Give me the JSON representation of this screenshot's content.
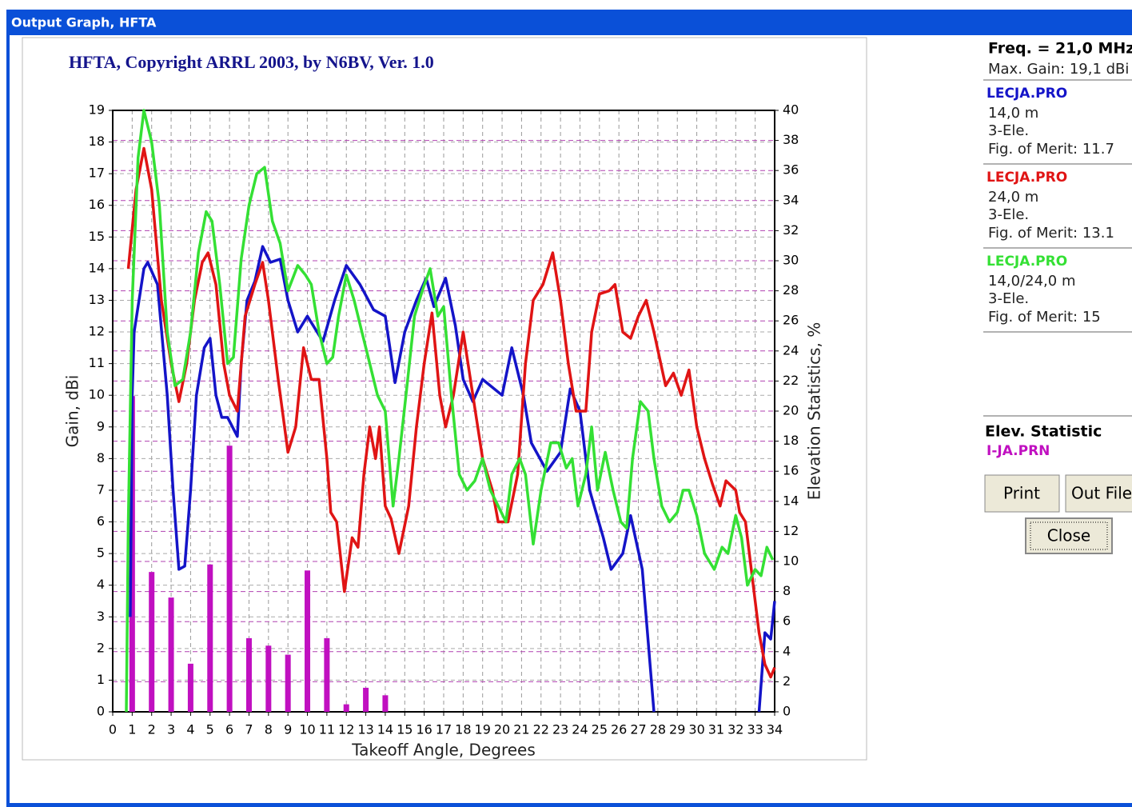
{
  "window": {
    "title": "Output Graph, HFTA"
  },
  "chart_data": {
    "type": "line",
    "title": "HFTA, Copyright ARRL 2003, by N6BV, Ver. 1.0",
    "x_label": "Takeoff Angle, Degrees",
    "y_label": "Gain, dBi",
    "y2_label": "Elevation Statistics, %",
    "xlim": [
      0,
      34
    ],
    "xticks": [
      0,
      1,
      2,
      3,
      4,
      5,
      6,
      7,
      8,
      9,
      10,
      11,
      12,
      13,
      14,
      15,
      16,
      17,
      18,
      19,
      20,
      21,
      22,
      23,
      24,
      25,
      26,
      27,
      28,
      29,
      30,
      31,
      32,
      33,
      34
    ],
    "ylim": [
      0,
      19
    ],
    "yticks": [
      0,
      1,
      2,
      3,
      4,
      5,
      6,
      7,
      8,
      9,
      10,
      11,
      12,
      13,
      14,
      15,
      16,
      17,
      18,
      19
    ],
    "y2lim": [
      0,
      40
    ],
    "y2ticks": [
      0,
      2,
      4,
      6,
      8,
      10,
      12,
      14,
      16,
      18,
      20,
      22,
      24,
      26,
      28,
      30,
      32,
      34,
      36,
      38,
      40
    ],
    "grid": true,
    "series": [
      {
        "name": "LECJA.PRO",
        "color": "#1414c8",
        "x": [
          0.9,
          1,
          1.1,
          1.6,
          1.8,
          2.3,
          2.8,
          3.1,
          3.4,
          3.7,
          4,
          4.3,
          4.7,
          5,
          5.3,
          5.6,
          5.9,
          6.4,
          6.6,
          6.9,
          7.3,
          7.7,
          8.1,
          8.6,
          9,
          9.5,
          10,
          10.8,
          11.4,
          12,
          12.7,
          13.4,
          14,
          14.5,
          15,
          15.6,
          16.1,
          16.5,
          17.1,
          17.6,
          18,
          18.5,
          19,
          20,
          20.5,
          21.1,
          21.5,
          22.3,
          23,
          23.5,
          24,
          24.5,
          25.2,
          25.6,
          26.2,
          26.6,
          27.2,
          27.8,
          30,
          33.2,
          33.5,
          33.8,
          34
        ],
        "values": [
          3,
          10,
          12,
          14,
          14.2,
          13.5,
          10,
          7,
          4.5,
          4.6,
          7,
          10,
          11.5,
          11.8,
          10,
          9.3,
          9.3,
          8.7,
          11,
          13,
          13.6,
          14.7,
          14.2,
          14.3,
          13,
          12,
          12.5,
          11.7,
          13,
          14.1,
          13.5,
          12.7,
          12.5,
          10.4,
          12,
          13,
          13.7,
          12.8,
          13.7,
          12.2,
          10.5,
          9.8,
          10.5,
          10,
          11.5,
          10,
          8.5,
          7.6,
          8.2,
          10.2,
          9.5,
          7,
          5.5,
          4.5,
          5,
          6.2,
          4.5,
          0,
          null,
          0,
          2.5,
          2.3,
          3.5
        ]
      },
      {
        "name": "LECJA.PRO",
        "color": "#e01414",
        "x": [
          0.8,
          1.2,
          1.6,
          2,
          2.5,
          3,
          3.4,
          3.8,
          4.2,
          4.6,
          4.9,
          5.3,
          5.7,
          6,
          6.4,
          6.8,
          7.3,
          7.7,
          8,
          8.5,
          9,
          9.4,
          9.8,
          10.2,
          10.6,
          11,
          11.2,
          11.5,
          11.9,
          12.3,
          12.6,
          12.9,
          13.2,
          13.5,
          13.7,
          14,
          14.3,
          14.7,
          15.2,
          15.6,
          16,
          16.4,
          16.8,
          17.1,
          17.5,
          18,
          18.5,
          19,
          19.5,
          19.8,
          20.3,
          20.8,
          21.2,
          21.6,
          22.1,
          22.6,
          23,
          23.4,
          23.8,
          24.3,
          24.6,
          25,
          25.5,
          25.8,
          26.2,
          26.6,
          27,
          27.4,
          27.8,
          28.4,
          28.8,
          29.2,
          29.6,
          30,
          30.4,
          30.8,
          31.2,
          31.5,
          32,
          32.2,
          32.5,
          32.9,
          33.2,
          33.5,
          33.8,
          34
        ],
        "values": [
          14,
          16.5,
          17.8,
          16.5,
          13,
          11,
          9.8,
          11,
          13,
          14.2,
          14.5,
          13.5,
          11,
          10,
          9.5,
          12.5,
          13.5,
          14.2,
          13,
          10.5,
          8.2,
          9,
          11.5,
          10.5,
          10.5,
          8,
          6.3,
          6,
          3.8,
          5.5,
          5.2,
          7.5,
          9,
          8,
          9,
          6.5,
          6.1,
          5,
          6.5,
          9,
          11,
          12.6,
          10,
          9,
          10,
          12,
          10,
          8,
          7,
          6,
          6,
          7.5,
          11,
          13,
          13.5,
          14.5,
          13,
          11,
          9.5,
          9.5,
          12,
          13.2,
          13.3,
          13.5,
          12,
          11.8,
          12.5,
          13,
          12,
          10.3,
          10.7,
          10,
          10.8,
          9,
          8,
          7.2,
          6.5,
          7.3,
          7,
          6.3,
          6,
          4,
          2.5,
          1.5,
          1.1,
          1.4
        ]
      },
      {
        "name": "LECJA.PRO",
        "color": "#34e034",
        "x": [
          0.7,
          0.8,
          1,
          1.3,
          1.6,
          2,
          2.4,
          2.8,
          3.2,
          3.6,
          4,
          4.4,
          4.8,
          5.1,
          5.5,
          5.9,
          6.2,
          6.6,
          7,
          7.4,
          7.8,
          8.2,
          8.6,
          9,
          9.5,
          9.9,
          10.2,
          10.6,
          11,
          11.3,
          11.6,
          12,
          12.4,
          12.8,
          13.2,
          13.6,
          14,
          14.4,
          14.7,
          15.1,
          15.5,
          15.9,
          16.3,
          16.7,
          17,
          17.4,
          17.8,
          18.2,
          18.6,
          19,
          19.4,
          19.8,
          20.2,
          20.5,
          20.9,
          21.2,
          21.6,
          22,
          22.5,
          22.9,
          23.3,
          23.6,
          23.9,
          24.3,
          24.6,
          24.9,
          25.3,
          25.7,
          26.1,
          26.4,
          26.7,
          27.1,
          27.5,
          27.8,
          28.2,
          28.6,
          29,
          29.3,
          29.6,
          30,
          30.4,
          30.9,
          31.3,
          31.6,
          32,
          32.3,
          32.6,
          33,
          33.3,
          33.6,
          33.9
        ],
        "values": [
          0,
          6,
          13,
          17.5,
          19,
          18,
          16,
          12,
          10.3,
          10.5,
          12,
          14.5,
          15.8,
          15.5,
          13.5,
          11,
          11.2,
          14.3,
          16,
          17,
          17.2,
          15.5,
          14.8,
          13.3,
          14.1,
          13.8,
          13.5,
          12,
          11,
          11.2,
          12.5,
          13.8,
          13,
          12,
          11,
          10,
          9.5,
          6.5,
          8,
          10.2,
          12.5,
          13.3,
          14,
          12.5,
          12.8,
          10,
          7.5,
          7,
          7.3,
          8,
          7,
          6.5,
          6,
          7.5,
          8,
          7.5,
          5.3,
          7,
          8.5,
          8.5,
          7.7,
          8,
          6.5,
          7.5,
          9,
          7,
          8.2,
          7,
          6,
          5.8,
          8,
          9.8,
          9.5,
          8,
          6.5,
          6,
          6.3,
          7,
          7,
          6.2,
          5,
          4.5,
          5.2,
          5,
          6.2,
          5.5,
          4,
          4.5,
          4.3,
          5.2,
          4.8
        ]
      },
      {
        "name": "I-JA.PRN",
        "color": "#c010c0",
        "type": "bar",
        "axis": "y2",
        "x": [
          1,
          2,
          3,
          4,
          5,
          6,
          7,
          8,
          9,
          10,
          11,
          12,
          13,
          14
        ],
        "values": [
          21,
          9.3,
          7.6,
          3.2,
          9.8,
          17.7,
          4.9,
          4.4,
          3.8,
          9.4,
          4.9,
          0.5,
          1.6,
          1.1
        ]
      }
    ]
  },
  "panel": {
    "freq": "Freq. = 21,0 MHz",
    "max_gain": "Max. Gain: 19,1 dBi",
    "antennas": [
      {
        "height": "14,0 m",
        "elements": "3-Ele.",
        "merit": "Fig. of Merit:  11.7"
      },
      {
        "height": "24,0 m",
        "elements": "3-Ele.",
        "merit": "Fig. of Merit:  13.1"
      },
      {
        "height": "14,0/24,0 m",
        "elements": "3-Ele.",
        "merit": "Fig. of Merit:  15"
      }
    ],
    "stat_title": "Elev. Statistic",
    "buttons": [
      "Print",
      "Out File",
      "Close"
    ]
  }
}
